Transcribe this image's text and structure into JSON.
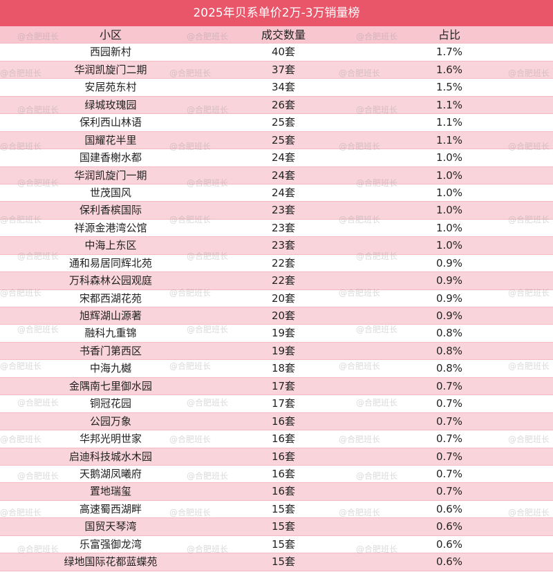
{
  "header": {
    "title": "2025年贝系单价2万-3万销量榜"
  },
  "table": {
    "columns": [
      "小区",
      "成交数量",
      "占比"
    ],
    "rows": [
      [
        "西园新村",
        "40套",
        "1.7%"
      ],
      [
        "华润凯旋门二期",
        "37套",
        "1.6%"
      ],
      [
        "安居苑东村",
        "34套",
        "1.5%"
      ],
      [
        "绿城玫瑰园",
        "26套",
        "1.1%"
      ],
      [
        "保利西山林语",
        "25套",
        "1.1%"
      ],
      [
        "国耀花半里",
        "25套",
        "1.1%"
      ],
      [
        "国建香榭水都",
        "24套",
        "1.0%"
      ],
      [
        "华润凯旋门一期",
        "24套",
        "1.0%"
      ],
      [
        "世茂国风",
        "24套",
        "1.0%"
      ],
      [
        "保利香槟国际",
        "23套",
        "1.0%"
      ],
      [
        "祥源金港湾公馆",
        "23套",
        "1.0%"
      ],
      [
        "中海上东区",
        "23套",
        "1.0%"
      ],
      [
        "通和易居同辉北苑",
        "22套",
        "0.9%"
      ],
      [
        "万科森林公园观庭",
        "22套",
        "0.9%"
      ],
      [
        "宋都西湖花苑",
        "20套",
        "0.9%"
      ],
      [
        "旭辉湖山源著",
        "20套",
        "0.9%"
      ],
      [
        "融科九重锦",
        "19套",
        "0.8%"
      ],
      [
        "书香门第西区",
        "19套",
        "0.8%"
      ],
      [
        "中海九樾",
        "18套",
        "0.8%"
      ],
      [
        "金隅南七里御水园",
        "17套",
        "0.7%"
      ],
      [
        "铜冠花园",
        "17套",
        "0.7%"
      ],
      [
        "公园万象",
        "16套",
        "0.7%"
      ],
      [
        "华邦光明世家",
        "16套",
        "0.7%"
      ],
      [
        "启迪科技城水木园",
        "16套",
        "0.7%"
      ],
      [
        "天鹅湖凤曦府",
        "16套",
        "0.7%"
      ],
      [
        "置地瑞玺",
        "16套",
        "0.7%"
      ],
      [
        "高速蜀西湖畔",
        "15套",
        "0.6%"
      ],
      [
        "国贸天琴湾",
        "15套",
        "0.6%"
      ],
      [
        "乐富强御龙湾",
        "15套",
        "0.6%"
      ],
      [
        "绿地国际花都蓝蝶苑",
        "15套",
        "0.6%"
      ]
    ]
  },
  "watermark": "@合肥班长"
}
